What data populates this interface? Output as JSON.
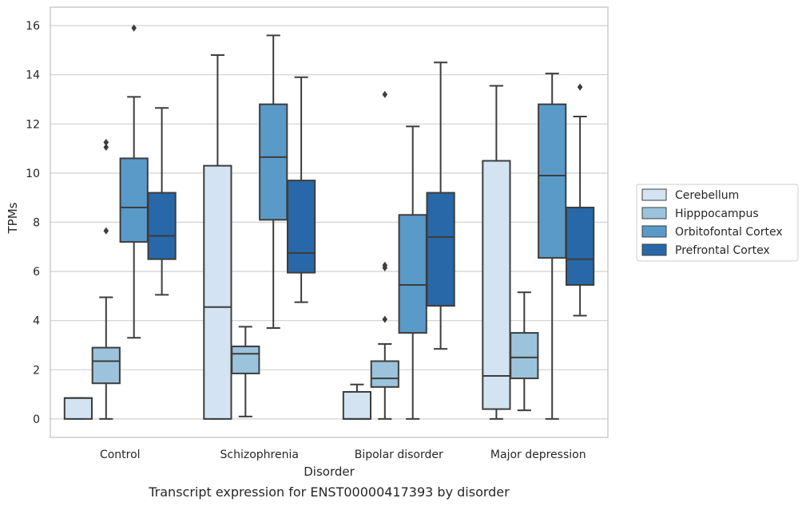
{
  "chart_data": {
    "type": "box",
    "caption": "Transcript expression for ENST00000417393 by disorder",
    "xlabel": "Disorder",
    "ylabel": "TPMs",
    "ylim": [
      -0.75,
      16.75
    ],
    "yticks": [
      0,
      2,
      4,
      6,
      8,
      10,
      12,
      14,
      16
    ],
    "grid": "horizontal",
    "legend_position": "right",
    "categories": [
      "Control",
      "Schizophrenia",
      "Bipolar disorder",
      "Major depression"
    ],
    "series": [
      {
        "name": "Cerebellum",
        "color": "#d4e3f1",
        "boxes": [
          {
            "whisker_low": 0.0,
            "q1": 0.0,
            "median": 0.85,
            "q3": 0.85,
            "whisker_high": 0.85,
            "outliers": []
          },
          {
            "whisker_low": 0.0,
            "q1": 0.0,
            "median": 4.55,
            "q3": 10.3,
            "whisker_high": 14.8,
            "outliers": []
          },
          {
            "whisker_low": 0.0,
            "q1": 0.0,
            "median": 0.0,
            "q3": 1.1,
            "whisker_high": 1.4,
            "outliers": []
          },
          {
            "whisker_low": 0.0,
            "q1": 0.4,
            "median": 1.75,
            "q3": 10.5,
            "whisker_high": 13.55,
            "outliers": []
          }
        ]
      },
      {
        "name": "Hipppocampus",
        "color": "#9bc3dc",
        "boxes": [
          {
            "whisker_low": 0.0,
            "q1": 1.45,
            "median": 2.35,
            "q3": 2.9,
            "whisker_high": 4.95,
            "outliers": [
              7.65,
              11.05,
              11.25
            ]
          },
          {
            "whisker_low": 0.1,
            "q1": 1.85,
            "median": 2.65,
            "q3": 2.95,
            "whisker_high": 3.75,
            "outliers": []
          },
          {
            "whisker_low": 0.0,
            "q1": 1.3,
            "median": 1.65,
            "q3": 2.35,
            "whisker_high": 3.05,
            "outliers": [
              4.05,
              6.15,
              6.25,
              13.2
            ]
          },
          {
            "whisker_low": 0.35,
            "q1": 1.65,
            "median": 2.5,
            "q3": 3.5,
            "whisker_high": 5.15,
            "outliers": []
          }
        ]
      },
      {
        "name": "Orbitofontal Cortex",
        "color": "#5a9ac9",
        "boxes": [
          {
            "whisker_low": 3.3,
            "q1": 7.2,
            "median": 8.6,
            "q3": 10.6,
            "whisker_high": 13.1,
            "outliers": [
              15.9
            ]
          },
          {
            "whisker_low": 3.7,
            "q1": 8.1,
            "median": 10.65,
            "q3": 12.8,
            "whisker_high": 15.6,
            "outliers": []
          },
          {
            "whisker_low": 0.0,
            "q1": 3.5,
            "median": 5.45,
            "q3": 8.3,
            "whisker_high": 11.9,
            "outliers": []
          },
          {
            "whisker_low": 0.0,
            "q1": 6.55,
            "median": 9.9,
            "q3": 12.8,
            "whisker_high": 14.05,
            "outliers": []
          }
        ]
      },
      {
        "name": "Prefrontal Cortex",
        "color": "#2868a8",
        "boxes": [
          {
            "whisker_low": 5.05,
            "q1": 6.5,
            "median": 7.45,
            "q3": 9.2,
            "whisker_high": 12.65,
            "outliers": []
          },
          {
            "whisker_low": 4.75,
            "q1": 5.95,
            "median": 6.75,
            "q3": 9.7,
            "whisker_high": 13.9,
            "outliers": []
          },
          {
            "whisker_low": 2.85,
            "q1": 4.6,
            "median": 7.4,
            "q3": 9.2,
            "whisker_high": 14.5,
            "outliers": []
          },
          {
            "whisker_low": 4.2,
            "q1": 5.45,
            "median": 6.5,
            "q3": 8.6,
            "whisker_high": 12.3,
            "outliers": [
              13.5
            ]
          }
        ]
      }
    ]
  }
}
